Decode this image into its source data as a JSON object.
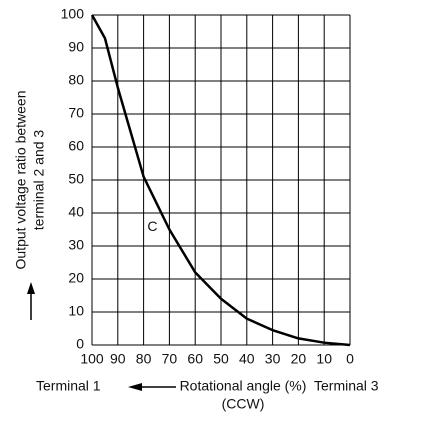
{
  "chart_data": {
    "type": "line",
    "y_label": [
      "Output voltage ratio between",
      "terminal 2 and 3"
    ],
    "x_label": {
      "left": "Terminal 1",
      "center": "Rotational angle (%)",
      "sub": "(CCW)",
      "right": "Terminal 3"
    },
    "x": [
      100,
      95,
      90,
      80,
      70,
      60,
      50,
      40,
      30,
      20,
      10,
      0
    ],
    "series": [
      {
        "name": "C",
        "color": "#000000",
        "values": [
          100,
          93,
          78,
          51,
          35,
          22,
          14,
          8,
          4.5,
          2,
          0.7,
          0
        ]
      }
    ],
    "xlim": [
      100,
      0
    ],
    "xticks": [
      100,
      90,
      80,
      70,
      60,
      50,
      40,
      30,
      20,
      10,
      0
    ],
    "ylim": [
      0,
      100
    ],
    "yticks": [
      0,
      10,
      20,
      30,
      40,
      50,
      60,
      70,
      80,
      90,
      100
    ],
    "grid": true
  }
}
